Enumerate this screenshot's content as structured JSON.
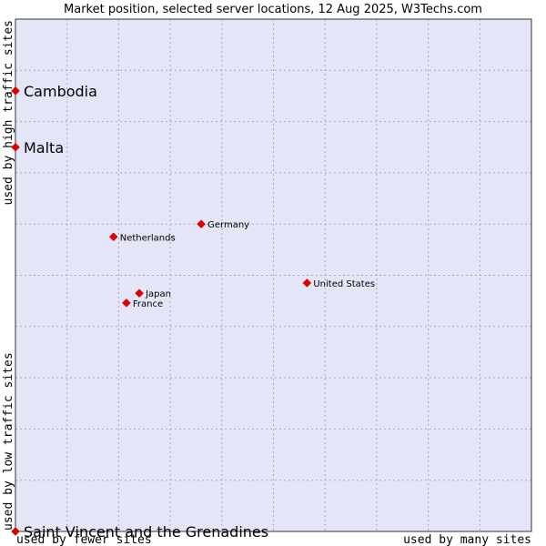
{
  "chart_data": {
    "type": "scatter",
    "title": "Market position, selected server locations, 12 Aug 2025, W3Techs.com",
    "xlabel_left": "used by fewer sites",
    "xlabel_right": "used by many sites",
    "ylabel_bottom": "used by low traffic sites",
    "ylabel_top": "used by high traffic sites",
    "xlim": [
      0,
      1
    ],
    "ylim": [
      0,
      1
    ],
    "grid": true,
    "colors": {
      "background": "#e4e6f8",
      "grid": "#a6a8c0",
      "frame": "#333333",
      "marker": "#e00000"
    },
    "points": [
      {
        "label": "Cambodia",
        "x": 0.0,
        "y": 0.86,
        "size": "large"
      },
      {
        "label": "Malta",
        "x": 0.0,
        "y": 0.75,
        "size": "large"
      },
      {
        "label": "Germany",
        "x": 0.36,
        "y": 0.6,
        "size": "small"
      },
      {
        "label": "Netherlands",
        "x": 0.19,
        "y": 0.575,
        "size": "small"
      },
      {
        "label": "United States",
        "x": 0.565,
        "y": 0.485,
        "size": "small"
      },
      {
        "label": "Japan",
        "x": 0.24,
        "y": 0.465,
        "size": "small"
      },
      {
        "label": "France",
        "x": 0.215,
        "y": 0.446,
        "size": "small"
      },
      {
        "label": "Saint Vincent and the Grenadines",
        "x": 0.0,
        "y": 0.0,
        "size": "large"
      }
    ]
  }
}
